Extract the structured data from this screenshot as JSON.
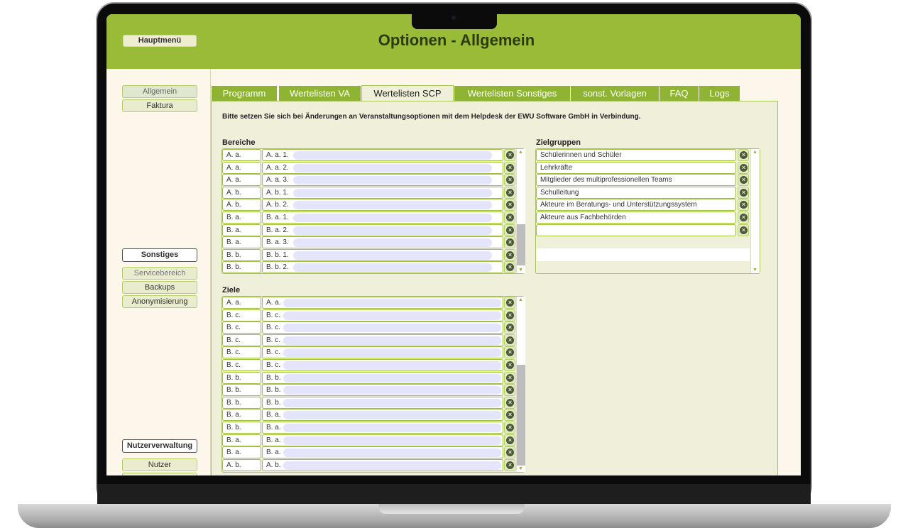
{
  "header": {
    "menu_button": "Hauptmenü",
    "title": "Optionen - Allgemein"
  },
  "sidebar": {
    "groups": [
      {
        "items": [
          "Allgemein",
          "Faktura"
        ]
      },
      {
        "title": "Sonstiges",
        "items": [
          "Servicebereich",
          "Backups",
          "Anonymisierung"
        ]
      },
      {
        "title": "Nutzerverwaltung",
        "items": [
          "Nutzer"
        ]
      }
    ]
  },
  "tabs": [
    {
      "label": "Programm"
    },
    {
      "label": "Wertelisten VA"
    },
    {
      "label": "Wertelisten SCP",
      "active": true
    },
    {
      "label": "Wertelisten Sonstiges"
    },
    {
      "label": "sonst. Vorlagen"
    },
    {
      "label": "FAQ"
    },
    {
      "label": "Logs"
    }
  ],
  "notice": "Bitte setzen Sie sich bei Änderungen an Veranstaltungsoptionen mit dem Helpdesk der EWU Software GmbH in Verbindung.",
  "bereiche": {
    "label": "Bereiche",
    "rows": [
      [
        "A. a.",
        "A. a. 1."
      ],
      [
        "A. a.",
        "A. a. 2."
      ],
      [
        "A. a.",
        "A. a. 3."
      ],
      [
        "A. b.",
        "A. b. 1."
      ],
      [
        "A. b.",
        "A. b. 2."
      ],
      [
        "B. a.",
        "B. a. 1."
      ],
      [
        "B. a.",
        "B. a. 2."
      ],
      [
        "B. a.",
        "B. a. 3."
      ],
      [
        "B. b.",
        "B. b. 1."
      ],
      [
        "B. b.",
        "B. b. 2."
      ]
    ]
  },
  "ziele": {
    "label": "Ziele",
    "rows": [
      [
        "A. a.",
        "A. a."
      ],
      [
        "B. c.",
        "B. c."
      ],
      [
        "B. c.",
        "B. c."
      ],
      [
        "B. c.",
        "B. c."
      ],
      [
        "B. c.",
        "B. c."
      ],
      [
        "B. c.",
        "B. c."
      ],
      [
        "B. b.",
        "B. b."
      ],
      [
        "B. b.",
        "B. b."
      ],
      [
        "B. b.",
        "B. b."
      ],
      [
        "B. a.",
        "B. a."
      ],
      [
        "B. b.",
        "B. a."
      ],
      [
        "B. a.",
        "B. a."
      ],
      [
        "B. a.",
        "B. a."
      ],
      [
        "A. b.",
        "A. b."
      ]
    ]
  },
  "zielgruppen": {
    "label": "Zielgruppen",
    "rows": [
      "Schülerinnen und Schüler",
      "Lehrkräfte",
      "Mitglieder des multiprofessionellen Teams",
      "Schulleitung",
      "Akteure im Beratungs- und Unterstützungssystem",
      "Akteure aus Fachbehörden",
      ""
    ]
  },
  "colors": {
    "accent": "#99bb38",
    "background": "#fdf6ea",
    "panel": "#f0efda"
  }
}
